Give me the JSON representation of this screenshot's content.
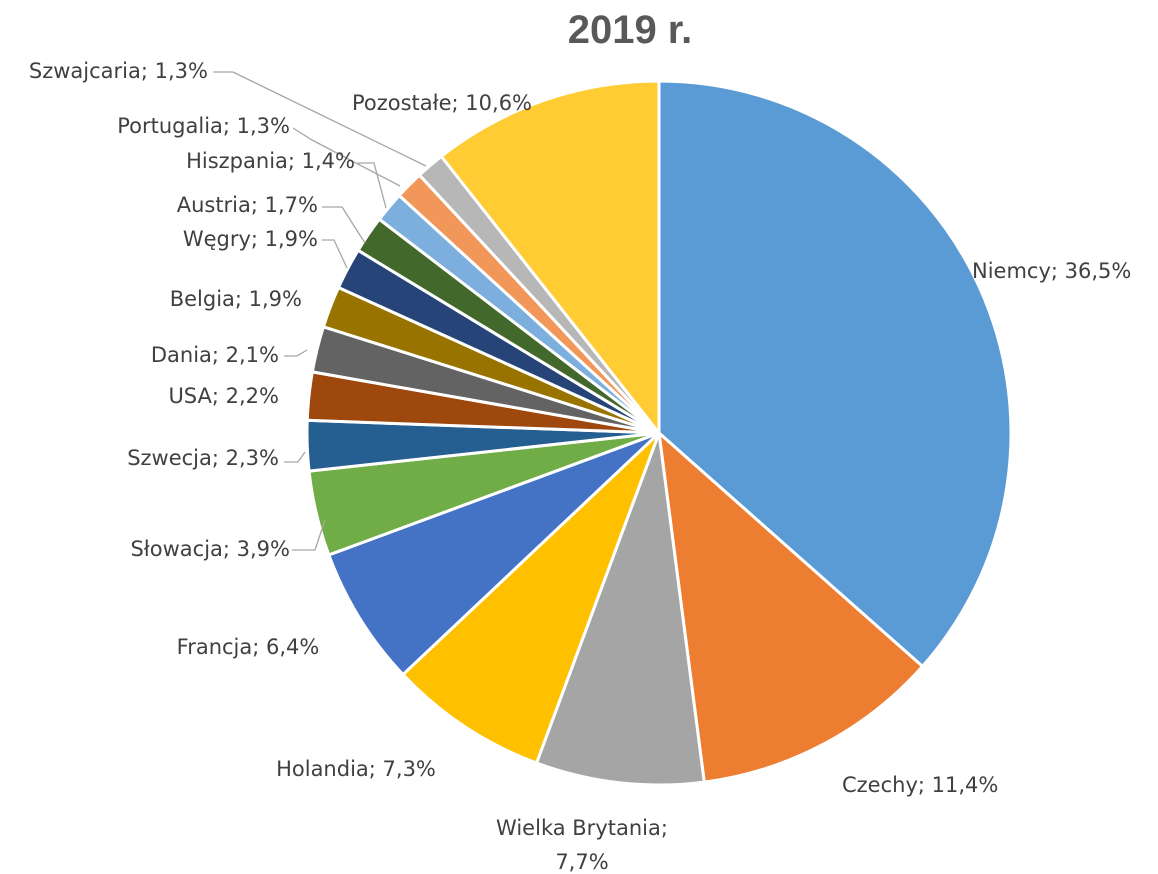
{
  "chart_data": {
    "type": "pie",
    "title": "2019 r.",
    "slices": [
      {
        "label": "Niemcy; 36,5%",
        "value": 36.5,
        "color": "#5b9bd5"
      },
      {
        "label": "Czechy; 11,4%",
        "value": 11.4,
        "color": "#ed7d31"
      },
      {
        "label": "Wielka Brytania; 7,7%",
        "label_lines": [
          "Wielka Brytania;",
          "7,7%"
        ],
        "value": 7.7,
        "color": "#a5a5a5"
      },
      {
        "label": "Holandia; 7,3%",
        "value": 7.3,
        "color": "#ffc000"
      },
      {
        "label": "Francja; 6,4%",
        "value": 6.4,
        "color": "#4472c4"
      },
      {
        "label": "Słowacja; 3,9%",
        "value": 3.9,
        "color": "#70ad47"
      },
      {
        "label": "Szwecja; 2,3%",
        "value": 2.3,
        "color": "#255e91"
      },
      {
        "label": "USA; 2,2%",
        "value": 2.2,
        "color": "#9e480e"
      },
      {
        "label": "Dania; 2,1%",
        "value": 2.1,
        "color": "#636363"
      },
      {
        "label": "Belgia; 1,9%",
        "value": 1.9,
        "color": "#997300"
      },
      {
        "label": "Węgry; 1,9%",
        "value": 1.9,
        "color": "#264478"
      },
      {
        "label": "Austria; 1,7%",
        "value": 1.7,
        "color": "#43682b"
      },
      {
        "label": "Hiszpania; 1,4%",
        "value": 1.4,
        "color": "#7cafdd"
      },
      {
        "label": "Portugalia; 1,3%",
        "value": 1.3,
        "color": "#f1975a"
      },
      {
        "label": "Szwajcaria; 1,3%",
        "value": 1.3,
        "color": "#b7b7b7"
      },
      {
        "label": "Pozostałe; 10,6%",
        "value": 10.6,
        "color": "#ffcd33"
      }
    ]
  }
}
